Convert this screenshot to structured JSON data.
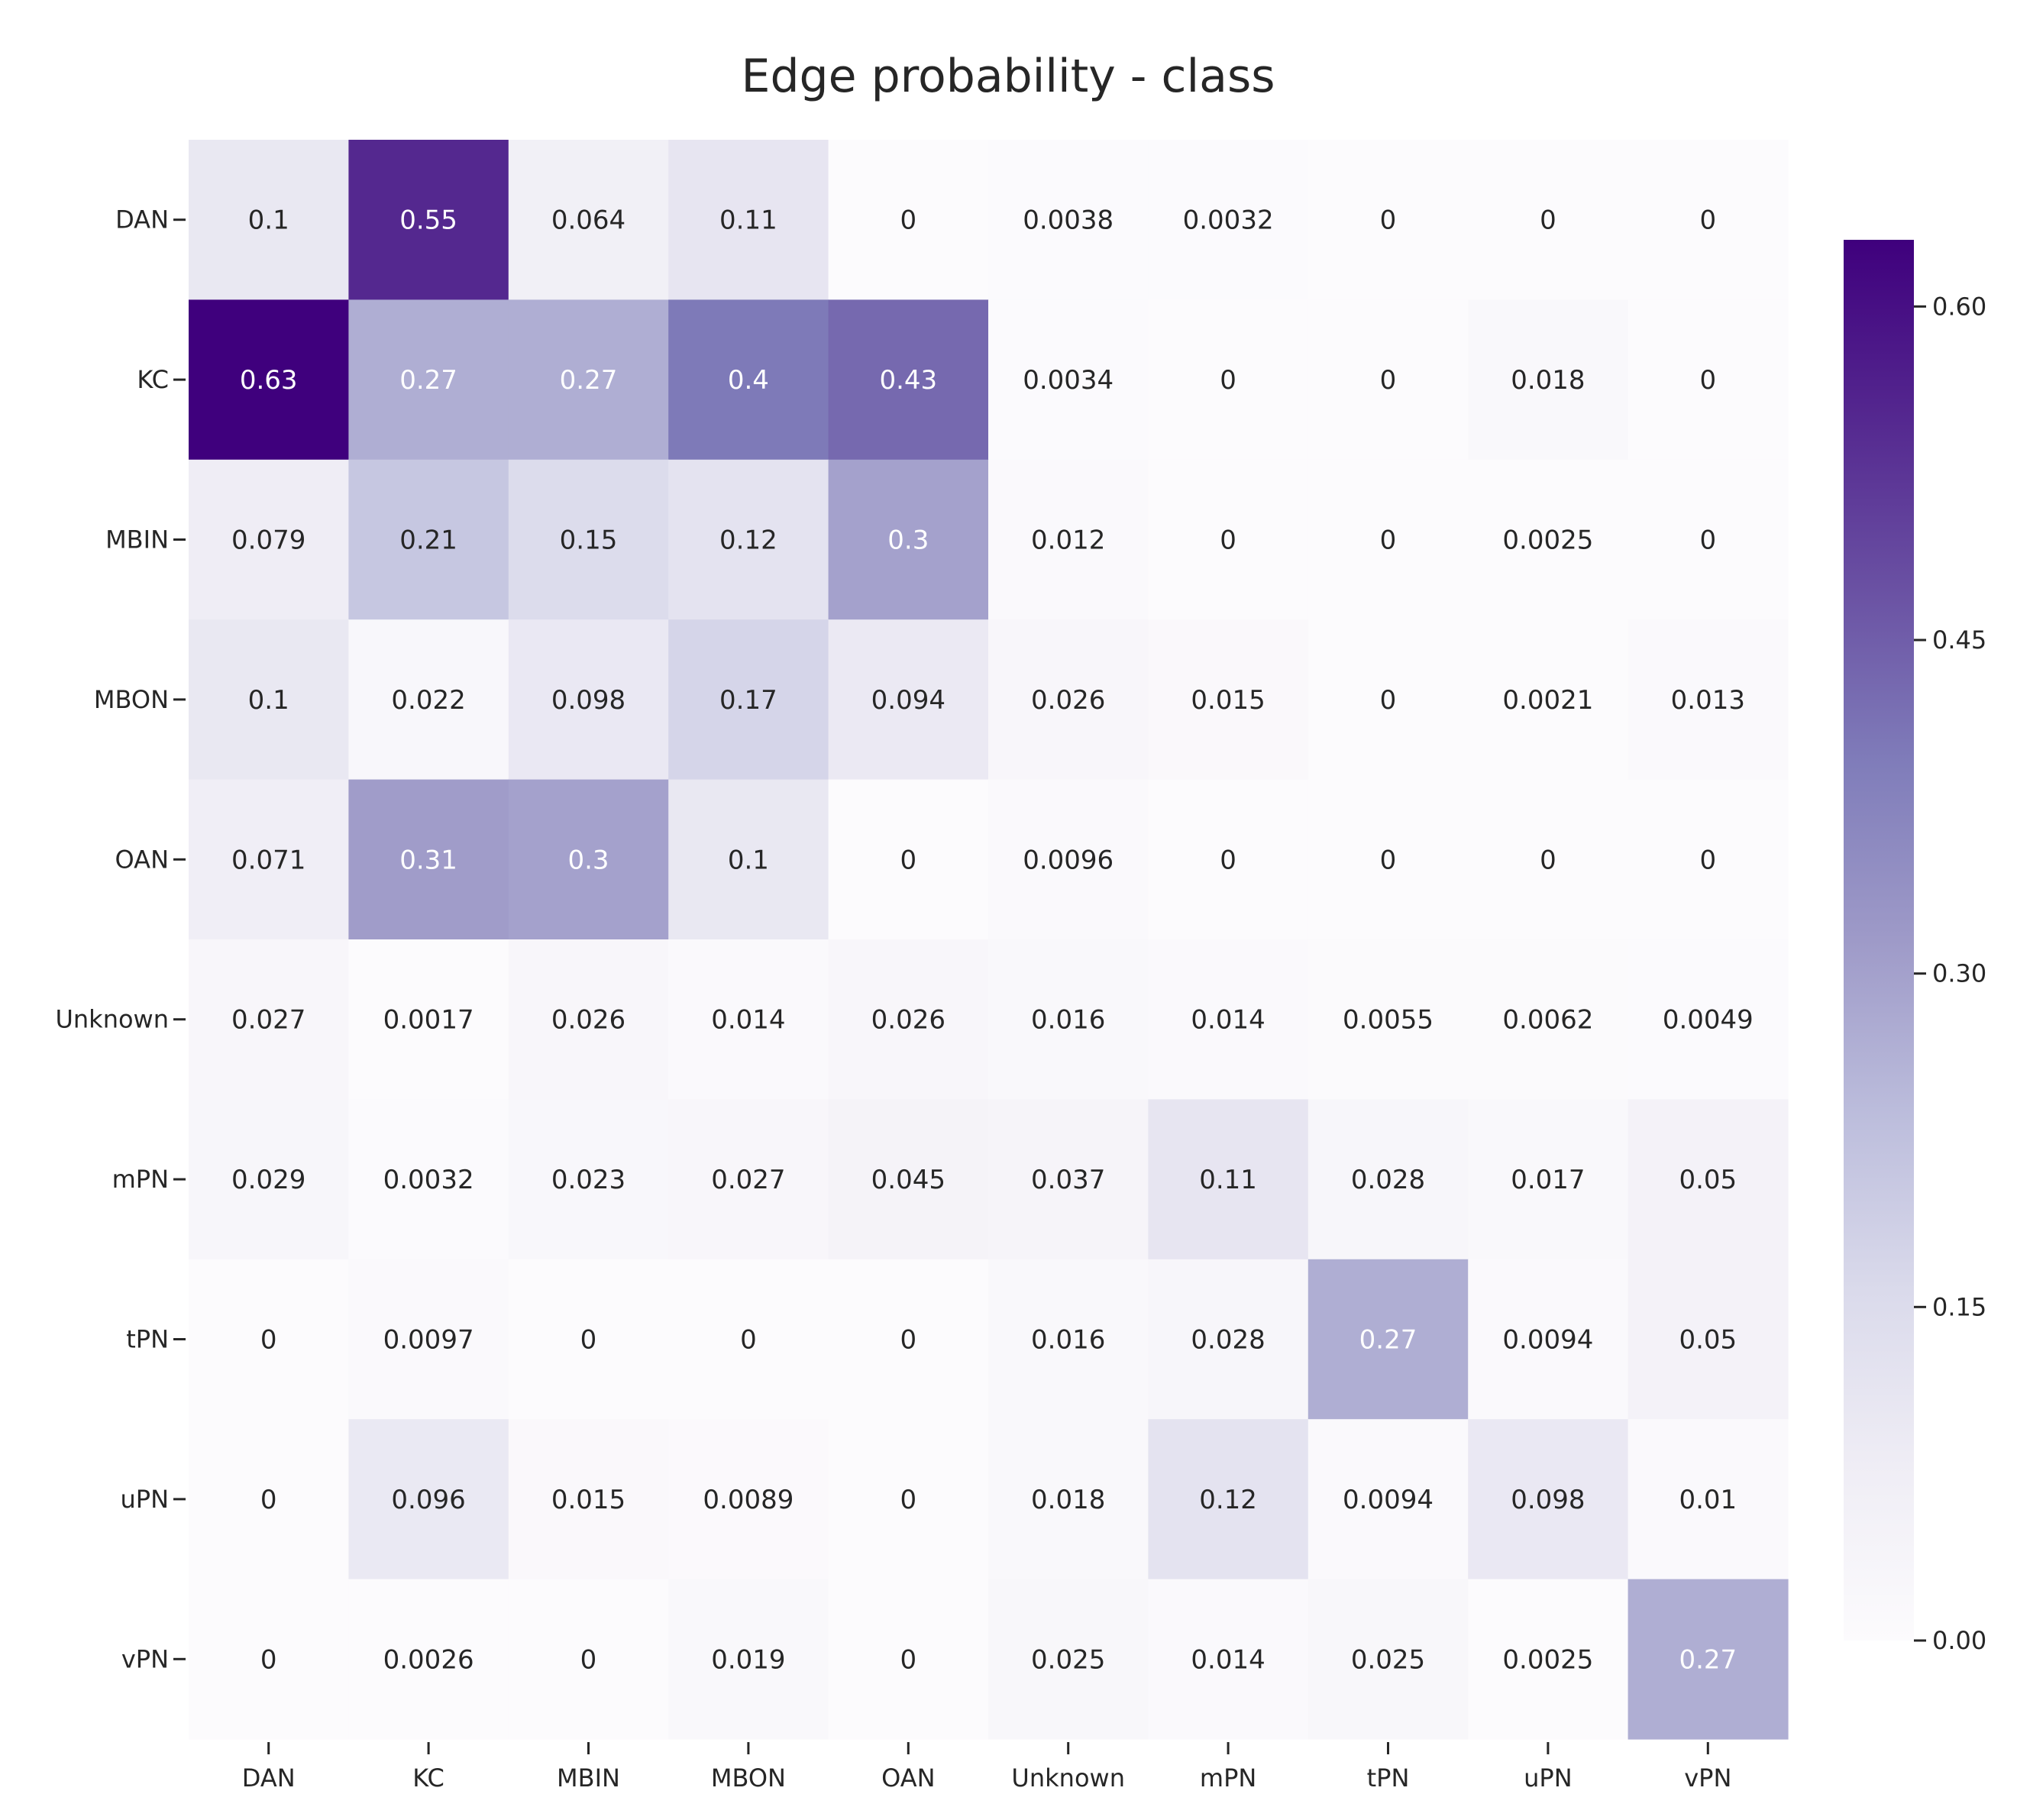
{
  "chart_data": {
    "type": "heatmap",
    "title": "Edge probability - class",
    "rows": [
      "DAN",
      "KC",
      "MBIN",
      "MBON",
      "OAN",
      "Unknown",
      "mPN",
      "tPN",
      "uPN",
      "vPN"
    ],
    "cols": [
      "DAN",
      "KC",
      "MBIN",
      "MBON",
      "OAN",
      "Unknown",
      "mPN",
      "tPN",
      "uPN",
      "vPN"
    ],
    "values": [
      [
        0.1,
        0.55,
        0.064,
        0.11,
        0,
        0.0038,
        0.0032,
        0,
        0,
        0
      ],
      [
        0.63,
        0.27,
        0.27,
        0.4,
        0.43,
        0.0034,
        0,
        0,
        0.018,
        0
      ],
      [
        0.079,
        0.21,
        0.15,
        0.12,
        0.3,
        0.012,
        0,
        0,
        0.0025,
        0
      ],
      [
        0.1,
        0.022,
        0.098,
        0.17,
        0.094,
        0.026,
        0.015,
        0,
        0.0021,
        0.013
      ],
      [
        0.071,
        0.31,
        0.3,
        0.1,
        0,
        0.0096,
        0,
        0,
        0,
        0
      ],
      [
        0.027,
        0.0017,
        0.026,
        0.014,
        0.026,
        0.016,
        0.014,
        0.0055,
        0.0062,
        0.0049
      ],
      [
        0.029,
        0.0032,
        0.023,
        0.027,
        0.045,
        0.037,
        0.11,
        0.028,
        0.017,
        0.05
      ],
      [
        0,
        0.0097,
        0,
        0,
        0,
        0.016,
        0.028,
        0.27,
        0.0094,
        0.05
      ],
      [
        0,
        0.096,
        0.015,
        0.0089,
        0,
        0.018,
        0.12,
        0.0094,
        0.098,
        0.01
      ],
      [
        0,
        0.0026,
        0,
        0.019,
        0,
        0.025,
        0.014,
        0.025,
        0.0025,
        0.27
      ]
    ],
    "labels": [
      [
        "0.1",
        "0.55",
        "0.064",
        "0.11",
        "0",
        "0.0038",
        "0.0032",
        "0",
        "0",
        "0"
      ],
      [
        "0.63",
        "0.27",
        "0.27",
        "0.4",
        "0.43",
        "0.0034",
        "0",
        "0",
        "0.018",
        "0"
      ],
      [
        "0.079",
        "0.21",
        "0.15",
        "0.12",
        "0.3",
        "0.012",
        "0",
        "0",
        "0.0025",
        "0"
      ],
      [
        "0.1",
        "0.022",
        "0.098",
        "0.17",
        "0.094",
        "0.026",
        "0.015",
        "0",
        "0.0021",
        "0.013"
      ],
      [
        "0.071",
        "0.31",
        "0.3",
        "0.1",
        "0",
        "0.0096",
        "0",
        "0",
        "0",
        "0"
      ],
      [
        "0.027",
        "0.0017",
        "0.026",
        "0.014",
        "0.026",
        "0.016",
        "0.014",
        "0.0055",
        "0.0062",
        "0.0049"
      ],
      [
        "0.029",
        "0.0032",
        "0.023",
        "0.027",
        "0.045",
        "0.037",
        "0.11",
        "0.028",
        "0.017",
        "0.05"
      ],
      [
        "0",
        "0.0097",
        "0",
        "0",
        "0",
        "0.016",
        "0.028",
        "0.27",
        "0.0094",
        "0.05"
      ],
      [
        "0",
        "0.096",
        "0.015",
        "0.0089",
        "0",
        "0.018",
        "0.12",
        "0.0094",
        "0.098",
        "0.01"
      ],
      [
        "0",
        "0.0026",
        "0",
        "0.019",
        "0",
        "0.025",
        "0.014",
        "0.025",
        "0.0025",
        "0.27"
      ]
    ],
    "colormap": "Purples",
    "colorbar": {
      "vmin": 0,
      "vmax": 0.63,
      "ticks": [
        0,
        0.15,
        0.3,
        0.45,
        0.6
      ],
      "tick_labels": [
        "0.00",
        "0.15",
        "0.30",
        "0.45",
        "0.60"
      ]
    },
    "grid": false
  }
}
